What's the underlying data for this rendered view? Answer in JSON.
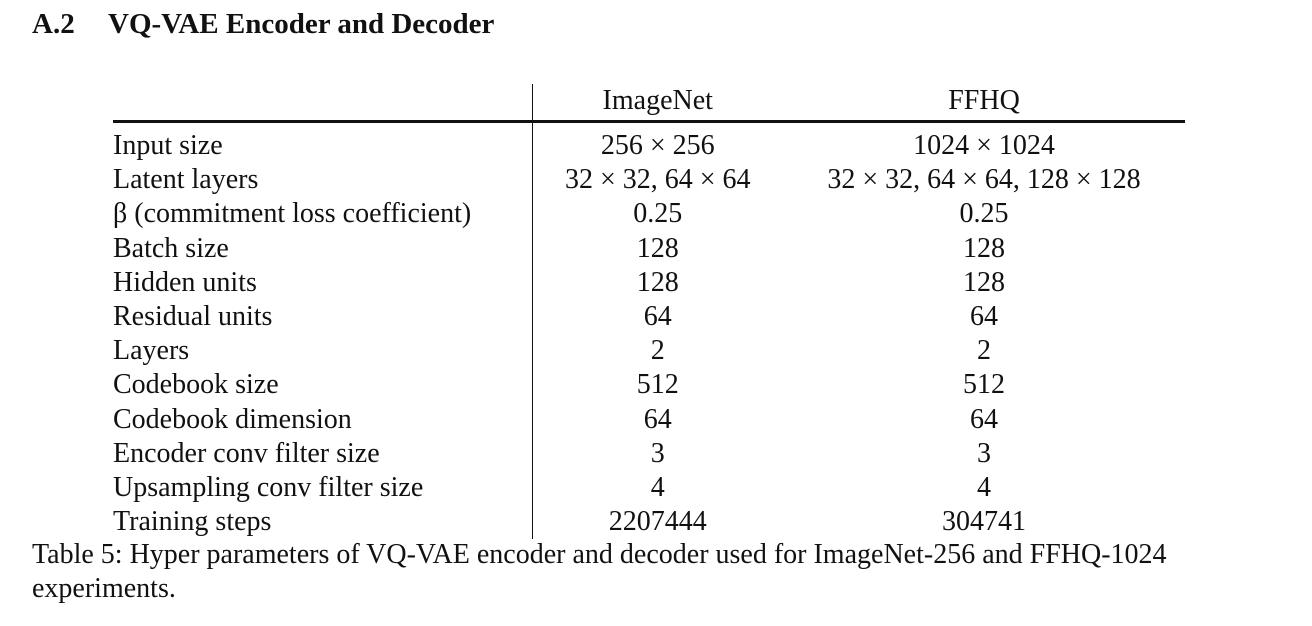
{
  "section": {
    "number": "A.2",
    "title": "VQ-VAE Encoder and Decoder"
  },
  "table": {
    "columns": [
      "",
      "ImageNet",
      "FFHQ"
    ],
    "rows": [
      {
        "label": "Input size",
        "imagenet": "256 × 256",
        "ffhq": "1024 × 1024"
      },
      {
        "label": "Latent layers",
        "imagenet": "32 × 32, 64 × 64",
        "ffhq": "32 × 32, 64 × 64, 128 × 128"
      },
      {
        "label": "β (commitment loss coefficient)",
        "imagenet": "0.25",
        "ffhq": "0.25"
      },
      {
        "label": "Batch size",
        "imagenet": "128",
        "ffhq": "128"
      },
      {
        "label": "Hidden units",
        "imagenet": "128",
        "ffhq": "128"
      },
      {
        "label": "Residual units",
        "imagenet": "64",
        "ffhq": "64"
      },
      {
        "label": "Layers",
        "imagenet": "2",
        "ffhq": "2"
      },
      {
        "label": "Codebook size",
        "imagenet": "512",
        "ffhq": "512"
      },
      {
        "label": "Codebook dimension",
        "imagenet": "64",
        "ffhq": "64"
      },
      {
        "label": "Encoder conv filter size",
        "imagenet": "3",
        "ffhq": "3"
      },
      {
        "label": "Upsampling conv filter size",
        "imagenet": "4",
        "ffhq": "4"
      },
      {
        "label": "Training steps",
        "imagenet": "2207444",
        "ffhq": "304741"
      }
    ]
  },
  "caption": "Table 5: Hyper parameters of VQ-VAE encoder and decoder used for ImageNet-256 and FFHQ-1024 experiments."
}
